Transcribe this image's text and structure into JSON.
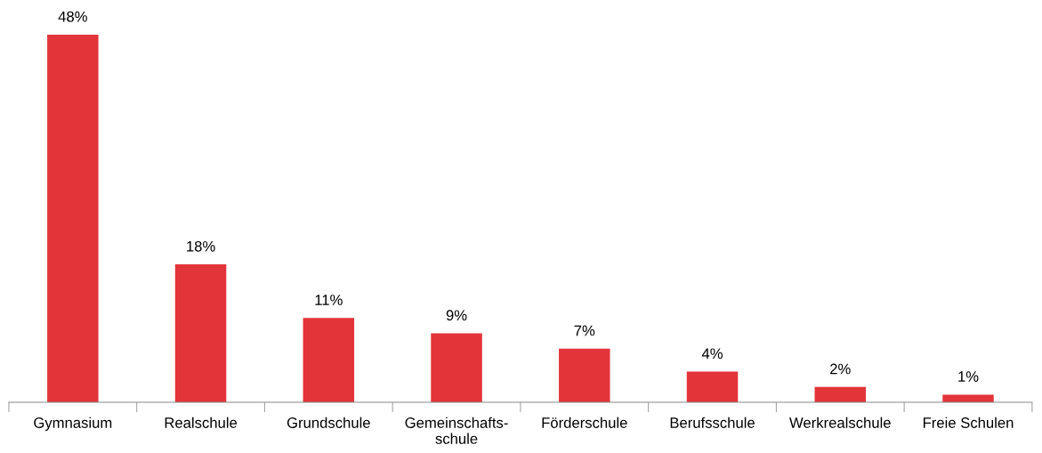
{
  "chart_data": {
    "type": "bar",
    "categories": [
      "Gymnasium",
      "Realschule",
      "Grundschule",
      "Gemeinschafts-\nschule",
      "Förderschule",
      "Berufsschule",
      "Werkrealschule",
      "Freie Schulen"
    ],
    "values": [
      48,
      18,
      11,
      9,
      7,
      4,
      2,
      1
    ],
    "value_labels": [
      "48%",
      "18%",
      "11%",
      "9%",
      "7%",
      "4%",
      "2%",
      "1%"
    ],
    "color": "#e3343a",
    "grid": false,
    "legend": false
  }
}
